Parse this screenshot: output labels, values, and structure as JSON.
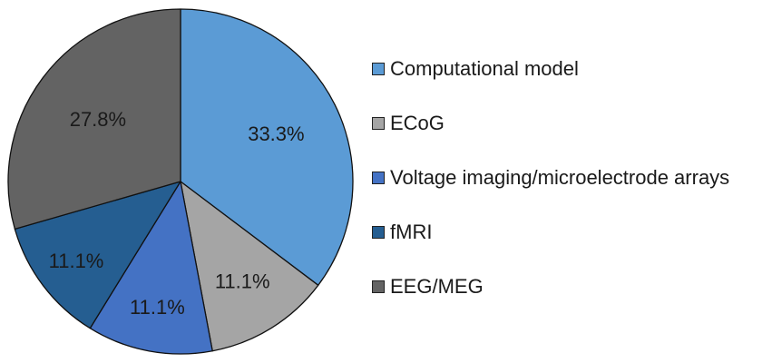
{
  "chart_data": {
    "type": "pie",
    "title": "",
    "slices": [
      {
        "label": "Computational model",
        "value": 33.3,
        "display": "33.3%",
        "color": "#5b9bd5"
      },
      {
        "label": "ECoG",
        "value": 11.1,
        "display": "11.1%",
        "color": "#a5a5a5"
      },
      {
        "label": "Voltage imaging/microelectrode arrays",
        "value": 11.1,
        "display": "11.1%",
        "color": "#4472c4"
      },
      {
        "label": "fMRI",
        "value": 11.1,
        "display": "11.1%",
        "color": "#255e91"
      },
      {
        "label": "EEG/MEG",
        "value": 27.8,
        "display": "27.8%",
        "color": "#636363"
      }
    ],
    "start_angle": "12 o'clock",
    "direction": "clockwise",
    "legend_position": "right"
  }
}
